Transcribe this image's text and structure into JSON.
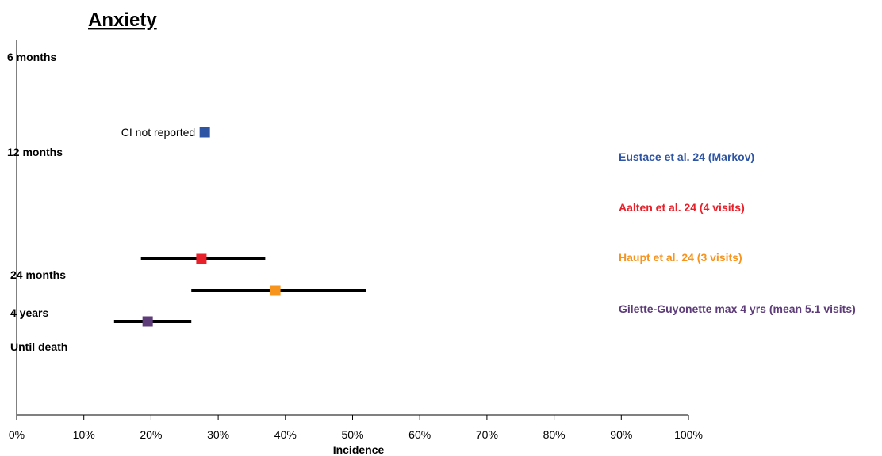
{
  "chart_data": {
    "type": "scatter",
    "title": "Anxiety",
    "xlabel": "Incidence",
    "xlim": [
      0,
      100
    ],
    "x_ticks": [
      "0%",
      "10%",
      "20%",
      "30%",
      "40%",
      "50%",
      "60%",
      "70%",
      "80%",
      "90%",
      "100%"
    ],
    "y_labels": [
      {
        "label": "6 months"
      },
      {
        "label": "12 months"
      },
      {
        "label": "24 months"
      },
      {
        "label": "4 years"
      },
      {
        "label": "Until death"
      }
    ],
    "series": [
      {
        "name": "Eustace et al. 24 (Markov)",
        "color": "#2E54A4",
        "x": 28.0,
        "ci": null,
        "annotation": "CI not reported"
      },
      {
        "name": "Aalten et al. 24 (4 visits)",
        "color": "#E8202A",
        "x": 27.5,
        "ci": [
          18.5,
          37.0
        ]
      },
      {
        "name": "Haupt et al. 24 (3 visits)",
        "color": "#F7941D",
        "x": 38.5,
        "ci": [
          26.0,
          52.0
        ]
      },
      {
        "name": "Gilette-Guyonette max 4 yrs (mean 5.1 visits)",
        "color": "#5E3C7A",
        "x": 19.5,
        "ci": [
          14.5,
          26.0
        ]
      }
    ]
  }
}
